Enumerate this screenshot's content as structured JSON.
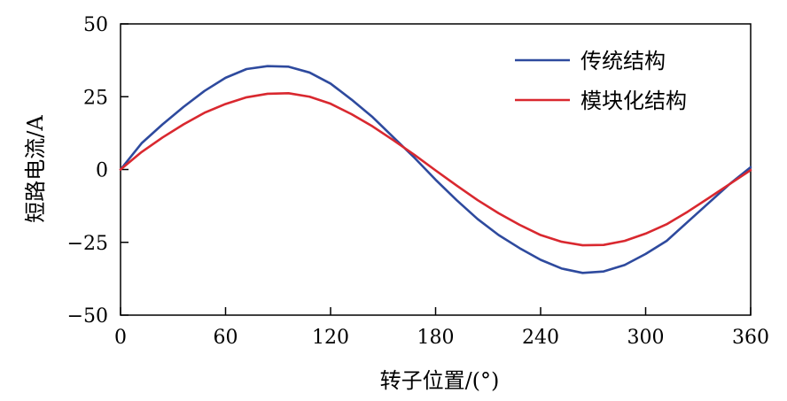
{
  "chart_data": {
    "type": "line",
    "title": "",
    "xlabel": "转子位置/(°)",
    "ylabel": "短路电流/A",
    "xlim": [
      0,
      360
    ],
    "ylim": [
      -50,
      50
    ],
    "xticks": [
      0,
      60,
      120,
      180,
      240,
      300,
      360
    ],
    "yticks": [
      -50,
      -25,
      0,
      25,
      50
    ],
    "ytick_labels": [
      "−50",
      "−25",
      "0",
      "25",
      "50"
    ],
    "grid": false,
    "legend_position": "top-right",
    "series": [
      {
        "name": "传统结构",
        "color": "#2E4A9E",
        "x": [
          0,
          12,
          24,
          36,
          48,
          60,
          72,
          84,
          96,
          108,
          120,
          132,
          144,
          156,
          168,
          180,
          192,
          204,
          216,
          228,
          240,
          252,
          264,
          276,
          288,
          300,
          312,
          324,
          336,
          348,
          360
        ],
        "y": [
          0,
          9,
          15.5,
          21.5,
          27,
          31.5,
          34.5,
          35.5,
          35.3,
          33.3,
          29.5,
          24,
          18,
          11,
          4,
          -3.5,
          -10.5,
          -17,
          -22.5,
          -27,
          -31,
          -34,
          -35.5,
          -35,
          -32.8,
          -29,
          -24.5,
          -18,
          -11.5,
          -5,
          0.8
        ]
      },
      {
        "name": "模块化结构",
        "color": "#D9282F",
        "x": [
          0,
          12,
          24,
          36,
          48,
          60,
          72,
          84,
          96,
          108,
          120,
          132,
          144,
          156,
          168,
          180,
          192,
          204,
          216,
          228,
          240,
          252,
          264,
          276,
          288,
          300,
          312,
          324,
          336,
          348,
          360
        ],
        "y": [
          0,
          6,
          11,
          15.5,
          19.5,
          22.5,
          24.8,
          26,
          26.2,
          25,
          22.6,
          19,
          14.8,
          10,
          5,
          -0.3,
          -5.5,
          -10.5,
          -15,
          -19,
          -22.5,
          -24.8,
          -26,
          -25.9,
          -24.5,
          -22,
          -18.8,
          -14.5,
          -9.8,
          -5,
          -0.2
        ]
      }
    ]
  }
}
